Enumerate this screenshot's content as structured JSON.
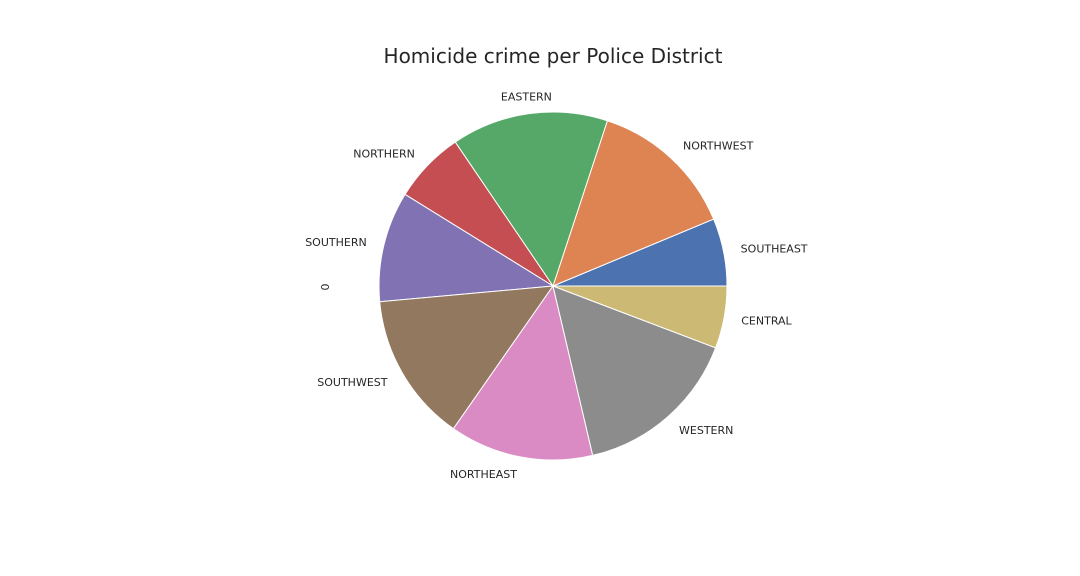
{
  "chart_data": {
    "type": "pie",
    "title": "Homicide crime per Police District",
    "ylabel": "0",
    "start_angle_deg": 0,
    "direction": "counterclockwise",
    "categories": [
      "SOUTHEAST",
      "NORTHWEST",
      "EASTERN",
      "NORTHERN",
      "SOUTHERN",
      "SOUTHWEST",
      "NORTHEAST",
      "WESTERN",
      "CENTRAL"
    ],
    "values": [
      6.3,
      13.7,
      14.6,
      6.7,
      10.3,
      13.9,
      13.4,
      15.6,
      5.8
    ],
    "colors": [
      "#4c72b0",
      "#dd8452",
      "#55a868",
      "#c44e52",
      "#8172b3",
      "#937860",
      "#da8bc3",
      "#8c8c8c",
      "#ccb974"
    ]
  }
}
